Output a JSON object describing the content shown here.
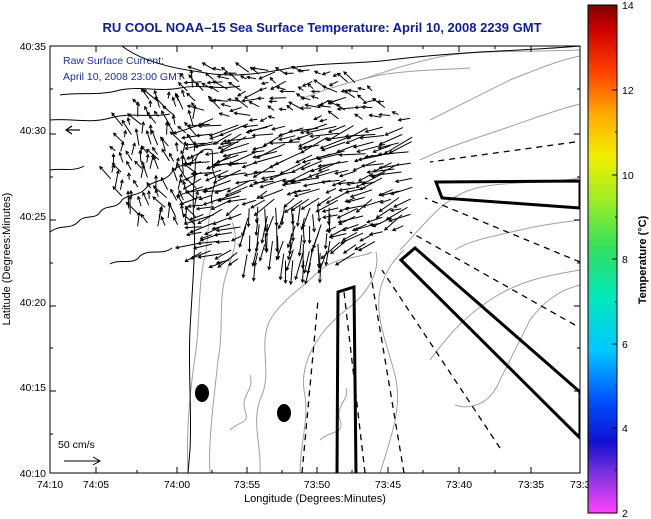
{
  "title": "RU COOL  NOAA–15  Sea Surface Temperature:  April 10, 2008 2239 GMT",
  "annotation": {
    "line1": "Raw Surface Current:",
    "line2": "April 10, 2008 23:00 GMT"
  },
  "scale_label": "50 cm/s",
  "axes": {
    "xlabel": "Longitude (Degrees:Minutes)",
    "ylabel": "Latitude (Degrees:Minutes)",
    "xticks": [
      "74:10",
      "74:05",
      "74:00",
      "73:55",
      "73:50",
      "73:45",
      "73:40",
      "73:35",
      "73:3"
    ],
    "yticks": [
      "40:35",
      "40:30",
      "40:25",
      "40:20",
      "40:15",
      "40:10"
    ]
  },
  "colorbar": {
    "title": "Temperature (°C)",
    "ticks": [
      "14",
      "12",
      "10",
      "8",
      "6",
      "4",
      "2"
    ],
    "range": [
      2,
      14
    ]
  },
  "colors": {
    "title_blue": "#0a1ca8",
    "annotation_blue": "#1a2ea8",
    "coastline": "#000000",
    "bathymetry": "#a0a0a0"
  }
}
